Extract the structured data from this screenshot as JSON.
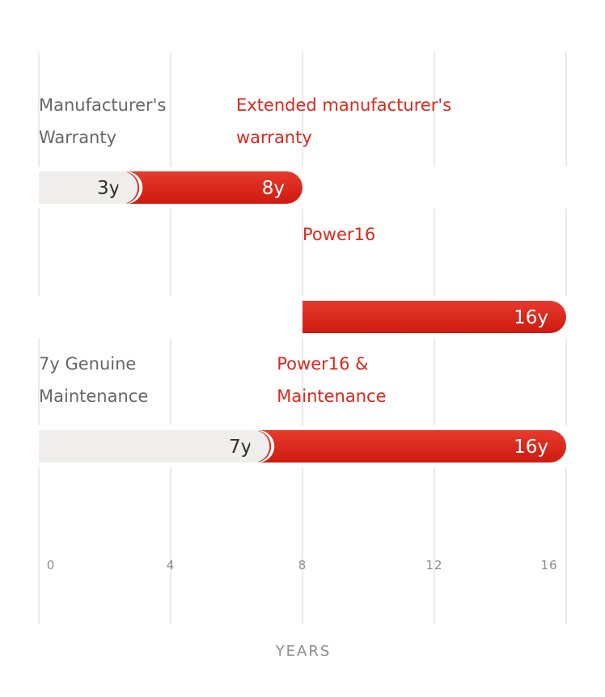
{
  "chart_data": {
    "type": "bar",
    "orientation": "horizontal",
    "xlabel": "YEARS",
    "xlim": [
      0,
      16
    ],
    "xticks": [
      0,
      4,
      8,
      12,
      16
    ],
    "grid": true,
    "unit_suffix": "y",
    "rows": [
      {
        "base": {
          "label": "Manufacturer's Warranty",
          "label_lines": [
            "Manufacturer's",
            "Warranty"
          ],
          "value": 3,
          "value_label": "3y"
        },
        "extension": {
          "label": "Extended manufacturer's warranty",
          "label_lines": [
            "Extended manufacturer's",
            "warranty"
          ],
          "value": 8,
          "value_label": "8y"
        }
      },
      {
        "base": null,
        "extension": {
          "label": "Power16",
          "label_lines": [
            "Power16"
          ],
          "start": 8,
          "value": 16,
          "value_label": "16y"
        }
      },
      {
        "base": {
          "label": "7y Genuine Maintenance",
          "label_lines": [
            "7y Genuine",
            "Maintenance"
          ],
          "value": 7,
          "value_label": "7y"
        },
        "extension": {
          "label": "Power16 & Maintenance",
          "label_lines": [
            "Power16 &",
            "Maintenance"
          ],
          "value": 16,
          "value_label": "16y"
        }
      }
    ]
  },
  "colors": {
    "accent_red": "#e0261b",
    "accent_red_dark": "#c7150d",
    "base_bar": "#efeeed",
    "grey_text": "#666666",
    "dark_text": "#2e2e2e",
    "grid": "#e4e4e4",
    "tick_text": "#8c8c8c"
  }
}
